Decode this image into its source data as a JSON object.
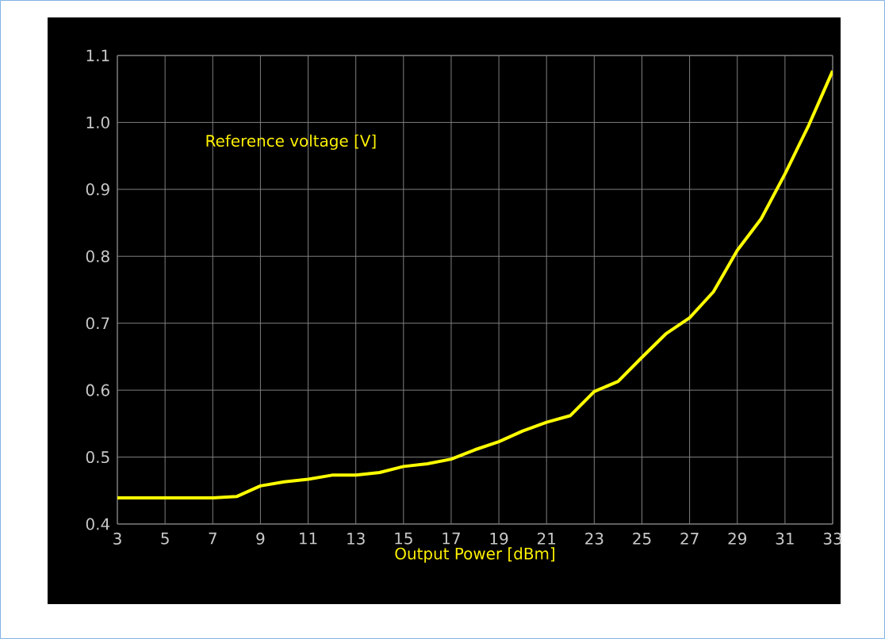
{
  "chart_data": {
    "type": "line",
    "xlabel": "Output Power [dBm]",
    "annotations": [
      "Reference voltage [V]"
    ],
    "x": [
      3,
      4,
      5,
      6,
      7,
      8,
      9,
      10,
      11,
      12,
      13,
      14,
      15,
      16,
      17,
      18,
      19,
      20,
      21,
      22,
      23,
      24,
      25,
      26,
      27,
      28,
      29,
      30,
      31,
      32,
      33
    ],
    "series": [
      {
        "color": "#ffff00",
        "values": [
          0.439,
          0.439,
          0.439,
          0.439,
          0.439,
          0.441,
          0.457,
          0.463,
          0.467,
          0.473,
          0.473,
          0.477,
          0.486,
          0.49,
          0.497,
          0.511,
          0.523,
          0.539,
          0.552,
          0.562,
          0.598,
          0.613,
          0.649,
          0.684,
          0.708,
          0.747,
          0.809,
          0.856,
          0.923,
          0.996,
          1.077
        ]
      }
    ],
    "xlim": [
      3,
      33
    ],
    "ylim": [
      0.4,
      1.1
    ],
    "xticks": [
      3,
      5,
      7,
      9,
      11,
      13,
      15,
      17,
      19,
      21,
      23,
      25,
      27,
      29,
      31,
      33
    ],
    "yticks": [
      0.4,
      0.5,
      0.6,
      0.7,
      0.8,
      0.9,
      {
        "value": 1.0,
        "label": "1.0"
      },
      1.1
    ],
    "grid": true,
    "marker": "none",
    "line_style": "solid"
  }
}
